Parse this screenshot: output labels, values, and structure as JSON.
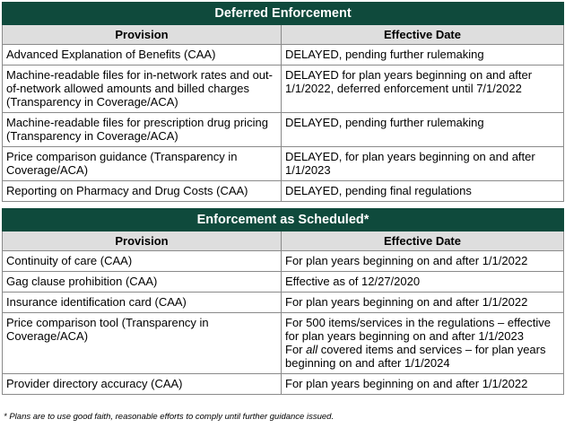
{
  "deferred": {
    "title": "Deferred Enforcement",
    "col_provision": "Provision",
    "col_date": "Effective Date",
    "rows": [
      {
        "provision": "Advanced Explanation of Benefits (CAA)",
        "date": "DELAYED, pending further rulemaking"
      },
      {
        "provision": "Machine-readable files for in-network rates and out-of-network allowed amounts and billed charges (Transparency in Coverage/ACA)",
        "date": "DELAYED for plan years beginning on and after 1/1/2022, deferred enforcement until 7/1/2022"
      },
      {
        "provision": "Machine-readable files for prescription drug pricing (Transparency in Coverage/ACA)",
        "date": "DELAYED, pending further rulemaking"
      },
      {
        "provision": "Price comparison guidance (Transparency in Coverage/ACA)",
        "date": "DELAYED, for plan years beginning on and after 1/1/2023"
      },
      {
        "provision": "Reporting on Pharmacy and Drug Costs (CAA)",
        "date": "DELAYED, pending final regulations"
      }
    ]
  },
  "scheduled": {
    "title": "Enforcement as Scheduled*",
    "col_provision": "Provision",
    "col_date": "Effective Date",
    "rows": [
      {
        "provision": "Continuity of care (CAA)",
        "date": "For plan years beginning on and after 1/1/2022"
      },
      {
        "provision": "Gag clause prohibition (CAA)",
        "date": "Effective as of 12/27/2020"
      },
      {
        "provision": "Insurance identification card (CAA)",
        "date": "For plan years beginning on and after 1/1/2022"
      },
      {
        "provision": "Price comparison tool (Transparency in Coverage/ACA)",
        "date_part1": "For 500 items/services in the regulations – effective for plan years beginning on and after 1/1/2023",
        "date_part2_pre": "For ",
        "date_part2_em": "all",
        "date_part2_post": " covered items and services – for plan years beginning on and after 1/1/2024"
      },
      {
        "provision": "Provider directory accuracy (CAA)",
        "date": "For plan years beginning on and after 1/1/2022"
      }
    ]
  },
  "footnote": "* Plans are to use good faith, reasonable efforts to comply until further guidance issued."
}
